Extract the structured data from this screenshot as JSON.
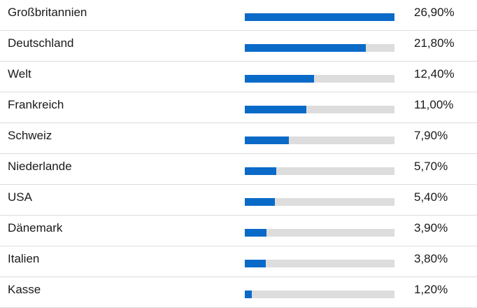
{
  "colors": {
    "bar": "#0a6ac8",
    "track": "#dddddd",
    "divider": "#dcdcdc",
    "text": "#1a1a1a"
  },
  "chart_data": {
    "type": "bar",
    "orientation": "horizontal",
    "categories": [
      "Großbritannien",
      "Deutschland",
      "Welt",
      "Frankreich",
      "Schweiz",
      "Niederlande",
      "USA",
      "Dänemark",
      "Italien",
      "Kasse"
    ],
    "values": [
      26.9,
      21.8,
      12.4,
      11.0,
      7.9,
      5.7,
      5.4,
      3.9,
      3.8,
      1.2
    ],
    "value_labels": [
      "26,90%",
      "21,80%",
      "12,40%",
      "11,00%",
      "7,90%",
      "5,70%",
      "5,40%",
      "3,90%",
      "3,80%",
      "1,20%"
    ],
    "xlim": [
      0,
      26.9
    ],
    "grid": false
  }
}
